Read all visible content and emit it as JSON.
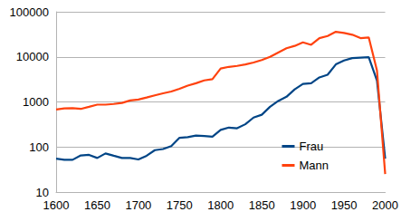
{
  "chart_data": {
    "type": "line",
    "x": [
      1600,
      1610,
      1620,
      1630,
      1640,
      1650,
      1660,
      1670,
      1680,
      1690,
      1700,
      1710,
      1720,
      1730,
      1740,
      1750,
      1760,
      1770,
      1780,
      1790,
      1800,
      1810,
      1820,
      1830,
      1840,
      1850,
      1860,
      1870,
      1880,
      1890,
      1900,
      1910,
      1920,
      1930,
      1940,
      1950,
      1960,
      1970,
      1980,
      1990,
      2000
    ],
    "series": [
      {
        "name": "Frau",
        "color": "#004586",
        "values": [
          55,
          52,
          52,
          65,
          67,
          57,
          72,
          64,
          57,
          57,
          53,
          64,
          85,
          90,
          105,
          160,
          165,
          180,
          175,
          170,
          240,
          270,
          260,
          320,
          450,
          520,
          780,
          1050,
          1300,
          1900,
          2500,
          2600,
          3500,
          4000,
          6800,
          8300,
          9400,
          9600,
          9800,
          3000,
          55
        ]
      },
      {
        "name": "Mann",
        "color": "#ff420e",
        "values": [
          680,
          720,
          730,
          700,
          780,
          870,
          870,
          900,
          950,
          1080,
          1130,
          1250,
          1400,
          1550,
          1700,
          1950,
          2300,
          2600,
          3000,
          3200,
          5500,
          6000,
          6300,
          6800,
          7500,
          8500,
          10000,
          12500,
          15500,
          17500,
          21000,
          18500,
          26000,
          29000,
          36000,
          34000,
          31000,
          26000,
          27000,
          5000,
          25
        ]
      }
    ],
    "xlim": [
      1600,
      2000
    ],
    "xticks": [
      1600,
      1650,
      1700,
      1750,
      1800,
      1850,
      1900,
      1950,
      2000
    ],
    "ylim": [
      10,
      100000
    ],
    "yticks": [
      10,
      100,
      1000,
      10000,
      100000
    ],
    "log": "y",
    "grid": true,
    "legend": "bottom-right"
  }
}
